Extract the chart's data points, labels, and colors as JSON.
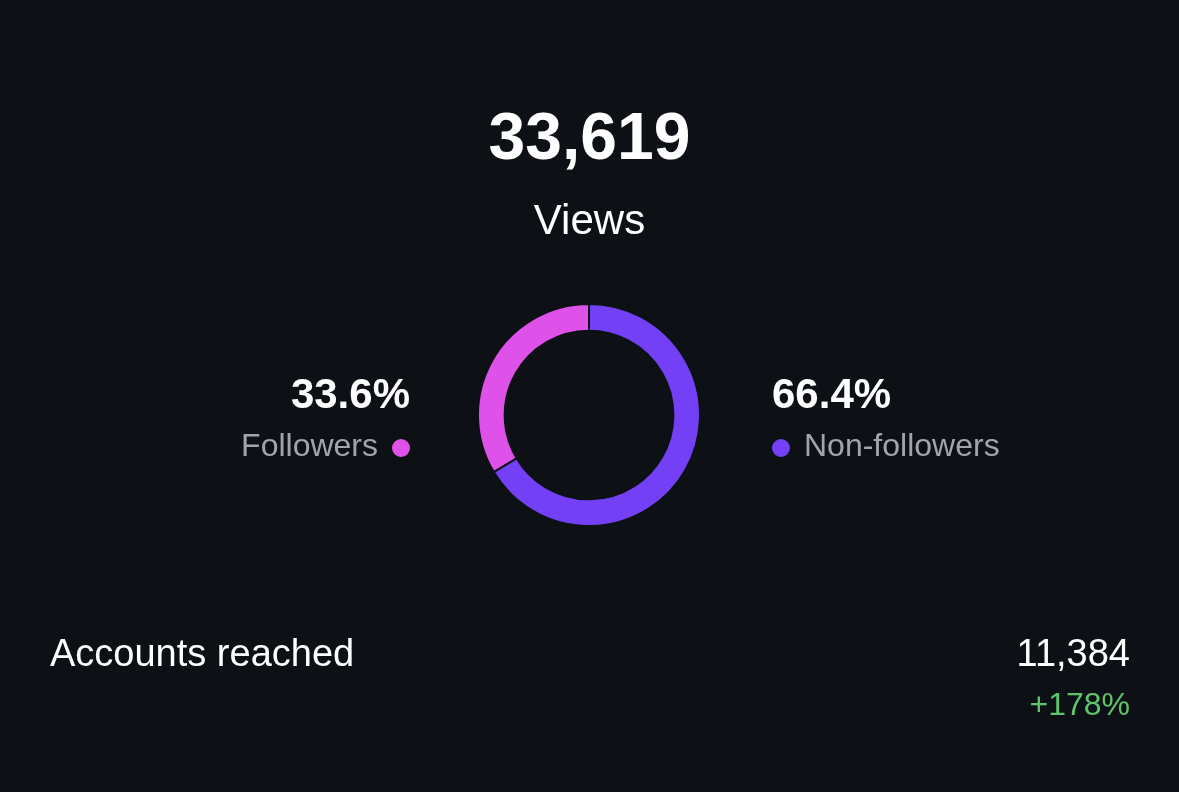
{
  "chart_data": {
    "type": "donut",
    "title": "33,619",
    "subtitle": "Views",
    "categories": [
      "Followers",
      "Non-followers"
    ],
    "values": [
      33.6,
      66.4
    ],
    "value_labels": [
      "33.6%",
      "66.4%"
    ],
    "colors": [
      "#df52e9",
      "#7340f5"
    ],
    "annotations": [
      "Accounts reached",
      "11,384",
      "+178%"
    ]
  }
}
